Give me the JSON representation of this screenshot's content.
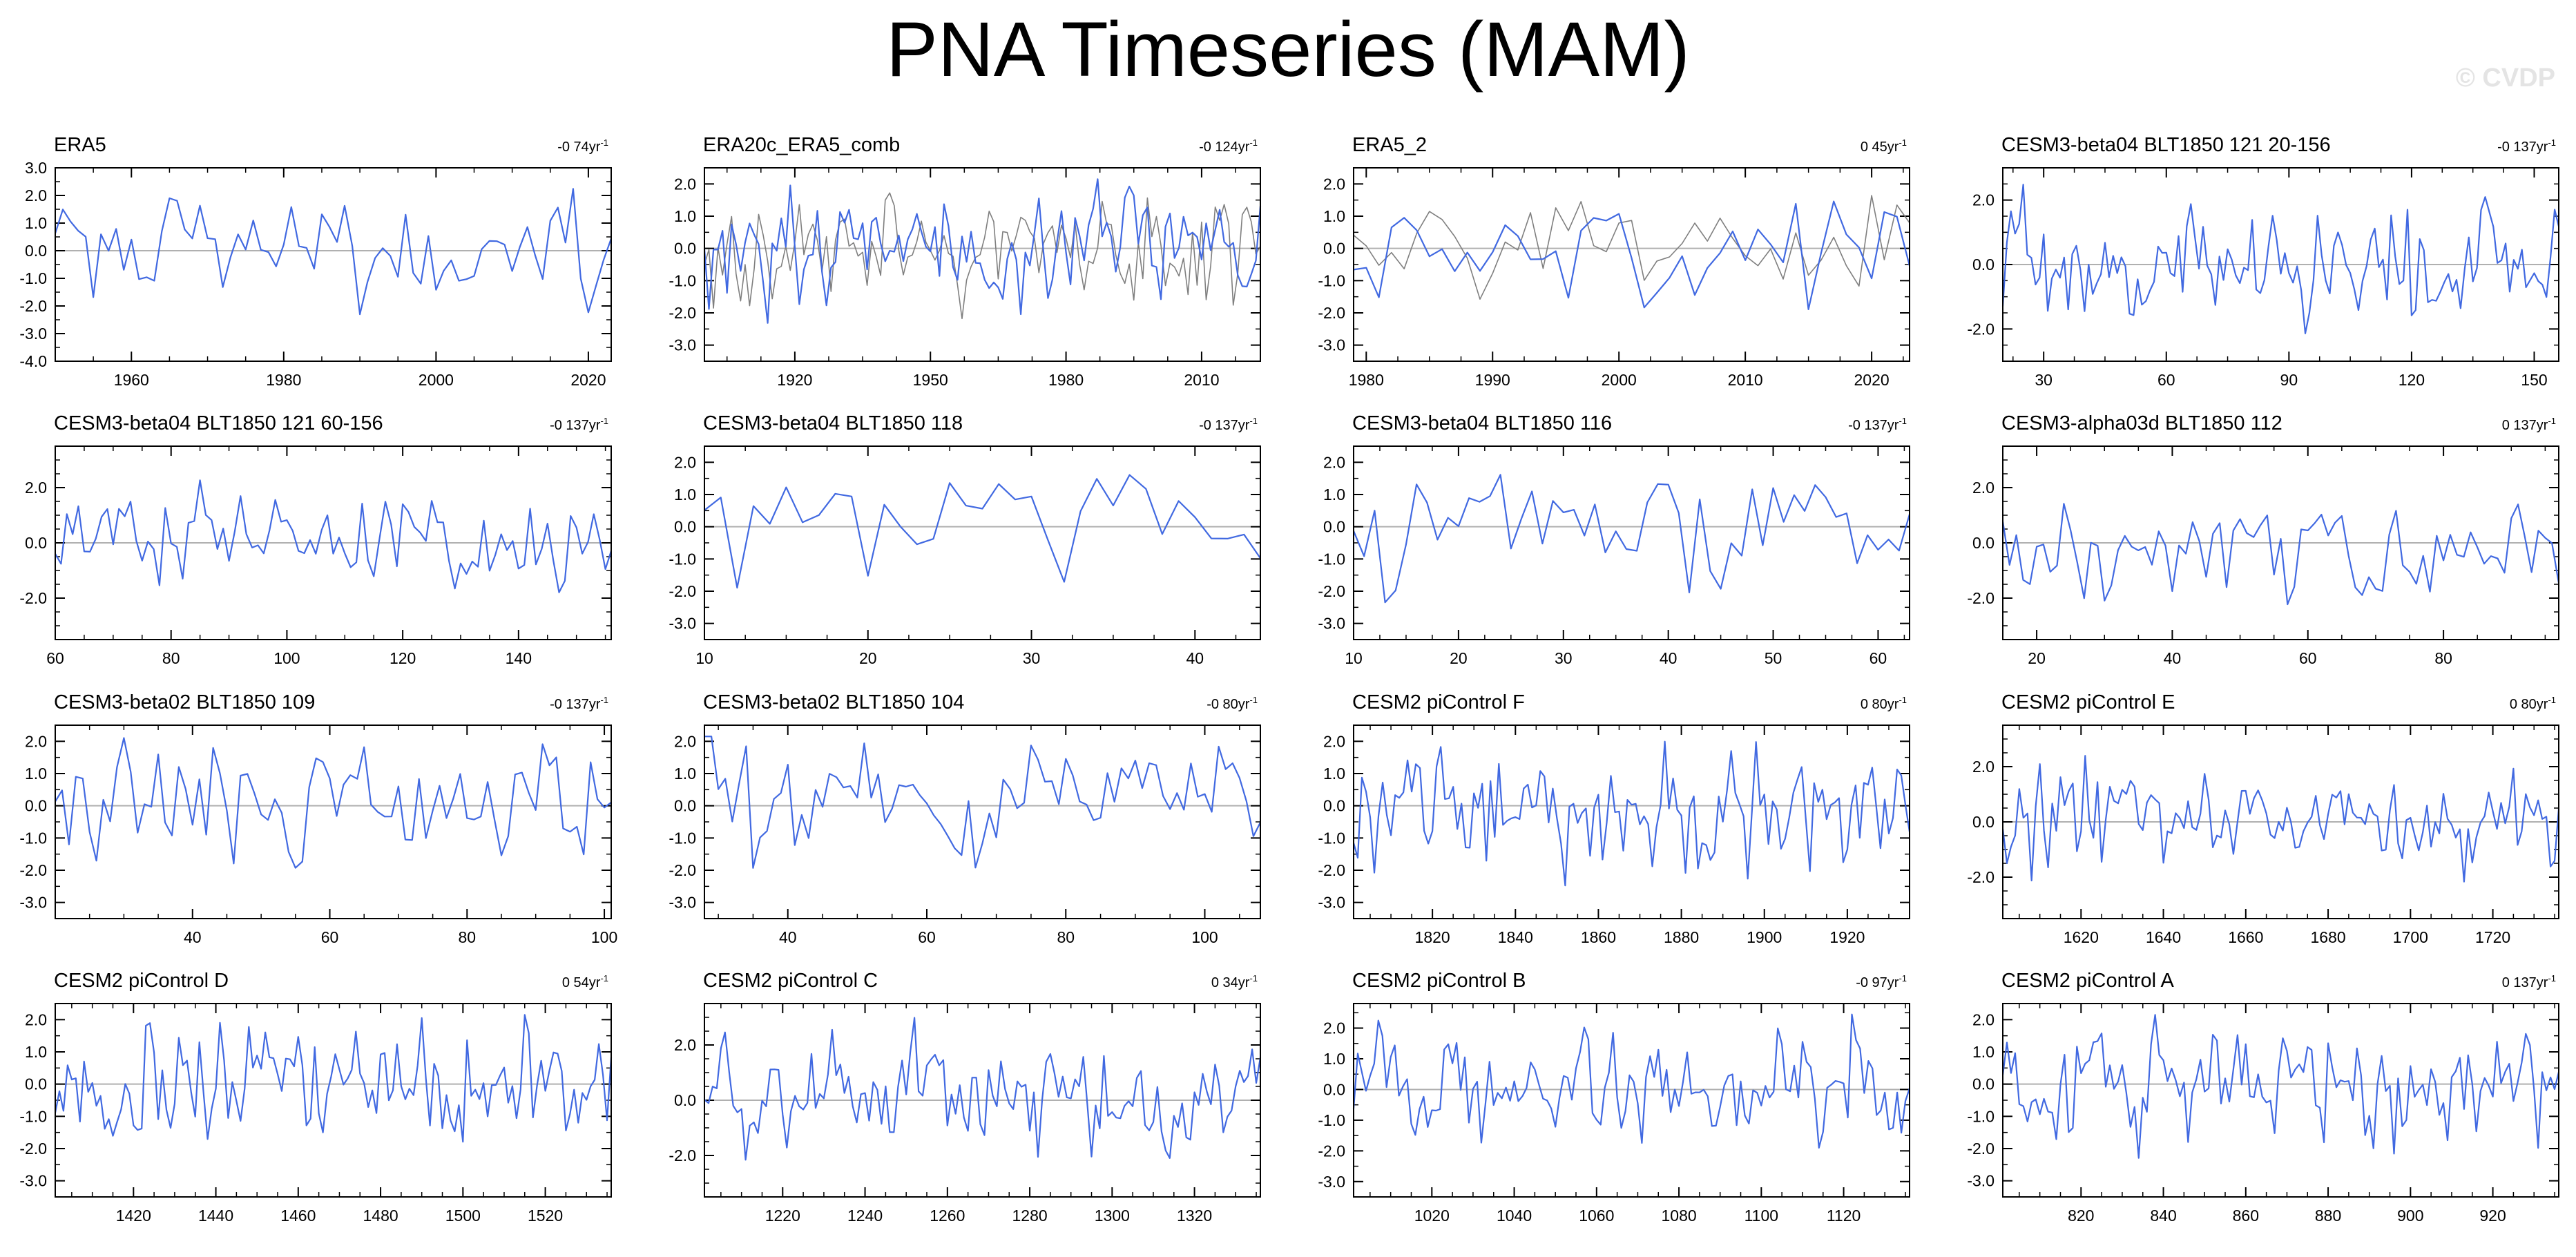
{
  "page": {
    "title": "PNA Timeseries (MAM)",
    "watermark": "© CVDP"
  },
  "colors": {
    "model_line": "#4169e1",
    "obs_line": "#7f7f7f",
    "zero_line": "#b0b0b0",
    "axis": "#000000"
  },
  "chart_data": [
    {
      "type": "line",
      "title": "ERA5",
      "trend": "-0 74yr",
      "trend_sup": "-1",
      "xlim": [
        1950,
        2023
      ],
      "ylim": [
        -4.0,
        3.0
      ],
      "yticks": [
        3.0,
        2.0,
        1.0,
        0.0,
        -1.0,
        -2.0,
        -3.0,
        -4.0
      ],
      "ytick_labels": [
        "3.0",
        "2.0",
        "1.0",
        "0.0",
        "-1.0",
        "-2.0",
        "-3.0",
        "-4.0"
      ],
      "xticks": [
        1960,
        1980,
        2000,
        2020
      ],
      "xtick_labels": [
        "1960",
        "1980",
        "2000",
        "2020"
      ],
      "series": [
        {
          "name": "ERA5",
          "seed": 11,
          "amp": 1.0
        }
      ]
    },
    {
      "type": "line",
      "title": "ERA20c_ERA5_comb",
      "trend": "-0 124yr",
      "trend_sup": "-1",
      "xlim": [
        1900,
        2023
      ],
      "ylim": [
        -3.5,
        2.5
      ],
      "yticks": [
        2.0,
        1.0,
        0.0,
        -1.0,
        -2.0,
        -3.0
      ],
      "ytick_labels": [
        "2.0",
        "1.0",
        "0.0",
        "-1.0",
        "-2.0",
        "-3.0"
      ],
      "xticks": [
        1920,
        1950,
        1980,
        2010
      ],
      "xtick_labels": [
        "1920",
        "1950",
        "1980",
        "2010"
      ],
      "series": [
        {
          "name": "obs",
          "seed": 23,
          "amp": 1.0,
          "overlay": true
        },
        {
          "name": "ERA20c_ERA5_comb",
          "seed": 22,
          "amp": 1.0
        }
      ]
    },
    {
      "type": "line",
      "title": "ERA5_2",
      "trend": "0 45yr",
      "trend_sup": "-1",
      "xlim": [
        1979,
        2023
      ],
      "ylim": [
        -3.5,
        2.5
      ],
      "yticks": [
        2.0,
        1.0,
        0.0,
        -1.0,
        -2.0,
        -3.0
      ],
      "ytick_labels": [
        "2.0",
        "1.0",
        "0.0",
        "-1.0",
        "-2.0",
        "-3.0"
      ],
      "xticks": [
        1980,
        1990,
        2000,
        2010,
        2020
      ],
      "xtick_labels": [
        "1980",
        "1990",
        "2000",
        "2010",
        "2020"
      ],
      "series": [
        {
          "name": "obs",
          "seed": 34,
          "amp": 1.0,
          "overlay": true
        },
        {
          "name": "ERA5_2",
          "seed": 33,
          "amp": 1.0
        }
      ]
    },
    {
      "type": "line",
      "title": "CESM3-beta04 BLT1850 121 20-156",
      "trend": "-0 137yr",
      "trend_sup": "-1",
      "xlim": [
        20,
        156
      ],
      "ylim": [
        -3.0,
        3.0
      ],
      "yticks": [
        2.0,
        0.0,
        -2.0
      ],
      "ytick_labels": [
        "2.0",
        "0.0",
        "-2.0"
      ],
      "xticks": [
        30,
        60,
        90,
        120,
        150
      ],
      "xtick_labels": [
        "30",
        "60",
        "90",
        "120",
        "150"
      ],
      "series": [
        {
          "name": "model",
          "seed": 44,
          "amp": 1.0
        }
      ]
    },
    {
      "type": "line",
      "title": "CESM3-beta04 BLT1850 121 60-156",
      "trend": "-0 137yr",
      "trend_sup": "-1",
      "xlim": [
        60,
        156
      ],
      "ylim": [
        -3.5,
        3.5
      ],
      "yticks": [
        2.0,
        0.0,
        -2.0
      ],
      "ytick_labels": [
        "2.0",
        "0.0",
        "-2.0"
      ],
      "xticks": [
        60,
        80,
        100,
        120,
        140
      ],
      "xtick_labels": [
        "60",
        "80",
        "100",
        "120",
        "140"
      ],
      "series": [
        {
          "name": "model",
          "seed": 55,
          "amp": 1.0
        }
      ]
    },
    {
      "type": "line",
      "title": "CESM3-beta04 BLT1850 118",
      "trend": "-0 137yr",
      "trend_sup": "-1",
      "xlim": [
        10,
        44
      ],
      "ylim": [
        -3.5,
        2.5
      ],
      "yticks": [
        2.0,
        1.0,
        0.0,
        -1.0,
        -2.0,
        -3.0
      ],
      "ytick_labels": [
        "2.0",
        "1.0",
        "0.0",
        "-1.0",
        "-2.0",
        "-3.0"
      ],
      "xticks": [
        10,
        20,
        30,
        40
      ],
      "xtick_labels": [
        "10",
        "20",
        "30",
        "40"
      ],
      "series": [
        {
          "name": "model",
          "seed": 66,
          "amp": 1.0
        }
      ]
    },
    {
      "type": "line",
      "title": "CESM3-beta04 BLT1850 116",
      "trend": "-0 137yr",
      "trend_sup": "-1",
      "xlim": [
        10,
        63
      ],
      "ylim": [
        -3.5,
        2.5
      ],
      "yticks": [
        2.0,
        1.0,
        0.0,
        -1.0,
        -2.0,
        -3.0
      ],
      "ytick_labels": [
        "2.0",
        "1.0",
        "0.0",
        "-1.0",
        "-2.0",
        "-3.0"
      ],
      "xticks": [
        10,
        20,
        30,
        40,
        50,
        60
      ],
      "xtick_labels": [
        "10",
        "20",
        "30",
        "40",
        "50",
        "60"
      ],
      "series": [
        {
          "name": "model",
          "seed": 77,
          "amp": 1.0
        }
      ]
    },
    {
      "type": "line",
      "title": "CESM3-alpha03d BLT1850 112",
      "trend": "0 137yr",
      "trend_sup": "-1",
      "xlim": [
        15,
        97
      ],
      "ylim": [
        -3.5,
        3.5
      ],
      "yticks": [
        2.0,
        0.0,
        -2.0
      ],
      "ytick_labels": [
        "2.0",
        "0.0",
        "-2.0"
      ],
      "xticks": [
        20,
        40,
        60,
        80
      ],
      "xtick_labels": [
        "20",
        "40",
        "60",
        "80"
      ],
      "series": [
        {
          "name": "model",
          "seed": 88,
          "amp": 1.0
        }
      ]
    },
    {
      "type": "line",
      "title": "CESM3-beta02 BLT1850 109",
      "trend": "-0 137yr",
      "trend_sup": "-1",
      "xlim": [
        20,
        101
      ],
      "ylim": [
        -3.5,
        2.5
      ],
      "yticks": [
        2.0,
        1.0,
        0.0,
        -1.0,
        -2.0,
        -3.0
      ],
      "ytick_labels": [
        "2.0",
        "1.0",
        "0.0",
        "-1.0",
        "-2.0",
        "-3.0"
      ],
      "xticks": [
        40,
        60,
        80,
        100
      ],
      "xtick_labels": [
        "40",
        "60",
        "80",
        "100"
      ],
      "series": [
        {
          "name": "model",
          "seed": 99,
          "amp": 1.0
        }
      ]
    },
    {
      "type": "line",
      "title": "CESM3-beta02 BLT1850 104",
      "trend": "-0 80yr",
      "trend_sup": "-1",
      "xlim": [
        28,
        108
      ],
      "ylim": [
        -3.5,
        2.5
      ],
      "yticks": [
        2.0,
        1.0,
        0.0,
        -1.0,
        -2.0,
        -3.0
      ],
      "ytick_labels": [
        "2.0",
        "1.0",
        "0.0",
        "-1.0",
        "-2.0",
        "-3.0"
      ],
      "xticks": [
        40,
        60,
        80,
        100
      ],
      "xtick_labels": [
        "40",
        "60",
        "80",
        "100"
      ],
      "series": [
        {
          "name": "model",
          "seed": 110,
          "amp": 1.0
        }
      ]
    },
    {
      "type": "line",
      "title": "CESM2 piControl F",
      "trend": "0 80yr",
      "trend_sup": "-1",
      "xlim": [
        1801,
        1935
      ],
      "ylim": [
        -3.5,
        2.5
      ],
      "yticks": [
        2.0,
        1.0,
        0.0,
        -1.0,
        -2.0,
        -3.0
      ],
      "ytick_labels": [
        "2.0",
        "1.0",
        "0.0",
        "-1.0",
        "-2.0",
        "-3.0"
      ],
      "xticks": [
        1820,
        1840,
        1860,
        1880,
        1900,
        1920
      ],
      "xtick_labels": [
        "1820",
        "1840",
        "1860",
        "1880",
        "1900",
        "1920"
      ],
      "series": [
        {
          "name": "model",
          "seed": 121,
          "amp": 1.0
        }
      ]
    },
    {
      "type": "line",
      "title": "CESM2 piControl E",
      "trend": "0 80yr",
      "trend_sup": "-1",
      "xlim": [
        1601,
        1736
      ],
      "ylim": [
        -3.5,
        3.5
      ],
      "yticks": [
        2.0,
        0.0,
        -2.0
      ],
      "ytick_labels": [
        "2.0",
        "0.0",
        "-2.0"
      ],
      "xticks": [
        1620,
        1640,
        1660,
        1680,
        1700,
        1720
      ],
      "xtick_labels": [
        "1620",
        "1640",
        "1660",
        "1680",
        "1700",
        "1720"
      ],
      "series": [
        {
          "name": "model",
          "seed": 132,
          "amp": 1.0
        }
      ]
    },
    {
      "type": "line",
      "title": "CESM2 piControl D",
      "trend": "0 54yr",
      "trend_sup": "-1",
      "xlim": [
        1401,
        1536
      ],
      "ylim": [
        -3.5,
        2.5
      ],
      "yticks": [
        2.0,
        1.0,
        0.0,
        -1.0,
        -2.0,
        -3.0
      ],
      "ytick_labels": [
        "2.0",
        "1.0",
        "0.0",
        "-1.0",
        "-2.0",
        "-3.0"
      ],
      "xticks": [
        1420,
        1440,
        1460,
        1480,
        1500,
        1520
      ],
      "xtick_labels": [
        "1420",
        "1440",
        "1460",
        "1480",
        "1500",
        "1520"
      ],
      "series": [
        {
          "name": "model",
          "seed": 143,
          "amp": 1.0
        }
      ]
    },
    {
      "type": "line",
      "title": "CESM2 piControl C",
      "trend": "0 34yr",
      "trend_sup": "-1",
      "xlim": [
        1201,
        1336
      ],
      "ylim": [
        -3.5,
        3.5
      ],
      "yticks": [
        2.0,
        0.0,
        -2.0
      ],
      "ytick_labels": [
        "2.0",
        "0.0",
        "-2.0"
      ],
      "xticks": [
        1220,
        1240,
        1260,
        1280,
        1300,
        1320
      ],
      "xtick_labels": [
        "1220",
        "1240",
        "1260",
        "1280",
        "1300",
        "1320"
      ],
      "series": [
        {
          "name": "model",
          "seed": 154,
          "amp": 1.0
        }
      ]
    },
    {
      "type": "line",
      "title": "CESM2 piControl B",
      "trend": "-0 97yr",
      "trend_sup": "-1",
      "xlim": [
        1001,
        1136
      ],
      "ylim": [
        -3.5,
        2.8
      ],
      "yticks": [
        2.0,
        1.0,
        0.0,
        -1.0,
        -2.0,
        -3.0
      ],
      "ytick_labels": [
        "2.0",
        "1.0",
        "0.0",
        "-1.0",
        "-2.0",
        "-3.0"
      ],
      "xticks": [
        1020,
        1040,
        1060,
        1080,
        1100,
        1120
      ],
      "xtick_labels": [
        "1020",
        "1040",
        "1060",
        "1080",
        "1100",
        "1120"
      ],
      "series": [
        {
          "name": "model",
          "seed": 165,
          "amp": 1.0
        }
      ]
    },
    {
      "type": "line",
      "title": "CESM2 piControl A",
      "trend": "0 137yr",
      "trend_sup": "-1",
      "xlim": [
        801,
        936
      ],
      "ylim": [
        -3.5,
        2.5
      ],
      "yticks": [
        2.0,
        1.0,
        0.0,
        -1.0,
        -2.0,
        -3.0
      ],
      "ytick_labels": [
        "2.0",
        "1.0",
        "0.0",
        "-1.0",
        "-2.0",
        "-3.0"
      ],
      "xticks": [
        820,
        840,
        860,
        880,
        900,
        920
      ],
      "xtick_labels": [
        "820",
        "840",
        "860",
        "880",
        "900",
        "920"
      ],
      "series": [
        {
          "name": "model",
          "seed": 176,
          "amp": 1.0
        }
      ]
    }
  ]
}
